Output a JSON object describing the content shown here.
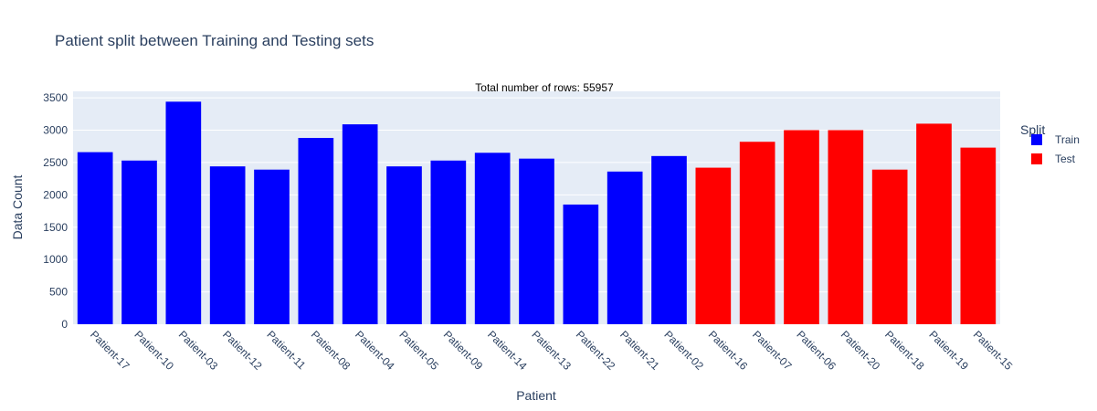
{
  "chart_data": {
    "type": "bar",
    "title": "Patient split between Training and Testing sets",
    "annotation": "Total number of rows: 55957",
    "xlabel": "Patient",
    "ylabel": "Data Count",
    "ylim": [
      0,
      3600
    ],
    "yticks": [
      0,
      500,
      1000,
      1500,
      2000,
      2500,
      3000,
      3500
    ],
    "grid": true,
    "legend_title": "Split",
    "legend_position": "right",
    "series": [
      {
        "name": "Train",
        "color": "#0000ff",
        "categories": [
          "Patient-17",
          "Patient-10",
          "Patient-03",
          "Patient-12",
          "Patient-11",
          "Patient-08",
          "Patient-04",
          "Patient-05",
          "Patient-09",
          "Patient-14",
          "Patient-13",
          "Patient-22",
          "Patient-21",
          "Patient-02"
        ],
        "values": [
          2660,
          2530,
          3440,
          2440,
          2390,
          2880,
          3090,
          2440,
          2530,
          2650,
          2560,
          1850,
          2360,
          2600
        ]
      },
      {
        "name": "Test",
        "color": "#ff0000",
        "categories": [
          "Patient-16",
          "Patient-07",
          "Patient-06",
          "Patient-20",
          "Patient-18",
          "Patient-19",
          "Patient-15"
        ],
        "values": [
          2420,
          2820,
          3000,
          3000,
          2390,
          3100,
          2730
        ]
      }
    ]
  }
}
